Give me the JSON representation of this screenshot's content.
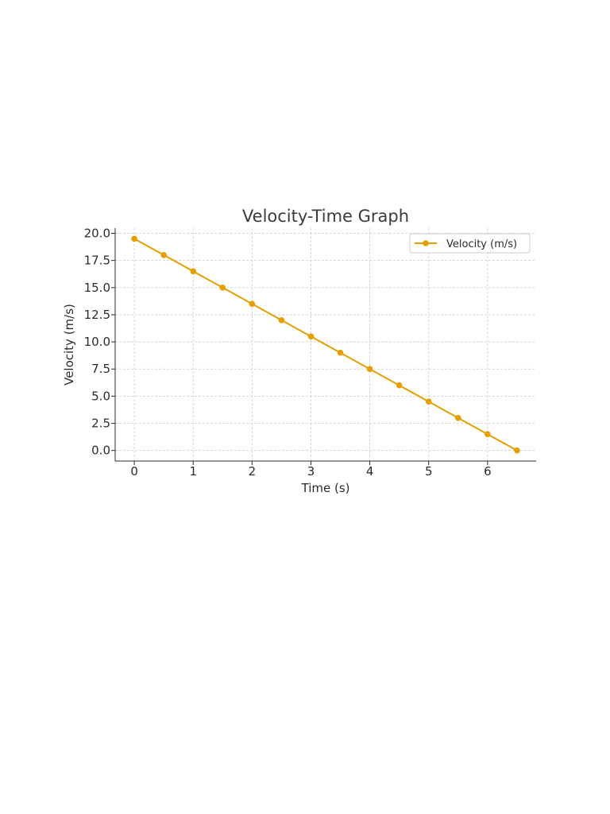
{
  "chart_data": {
    "type": "line",
    "title": "Velocity-Time Graph",
    "xlabel": "Time (s)",
    "ylabel": "Velocity (m/s)",
    "xlim": [
      -0.325,
      6.825
    ],
    "ylim": [
      -0.975,
      20.475
    ],
    "xticks": [
      "0",
      "1",
      "2",
      "3",
      "4",
      "5",
      "6"
    ],
    "yticks": [
      "0.0",
      "2.5",
      "5.0",
      "7.5",
      "10.0",
      "12.5",
      "15.0",
      "17.5",
      "20.0"
    ],
    "grid": true,
    "legend_position": "top-right",
    "series": [
      {
        "name": "Velocity (m/s)",
        "color": "#e69f00",
        "marker": "circle",
        "x": [
          0,
          0.5,
          1,
          1.5,
          2,
          2.5,
          3,
          3.5,
          4,
          4.5,
          5,
          5.5,
          6,
          6.5
        ],
        "y": [
          19.5,
          18.0,
          16.5,
          15.0,
          13.5,
          12.0,
          10.5,
          9.0,
          7.5,
          6.0,
          4.5,
          3.0,
          1.5,
          0.0
        ]
      }
    ]
  }
}
